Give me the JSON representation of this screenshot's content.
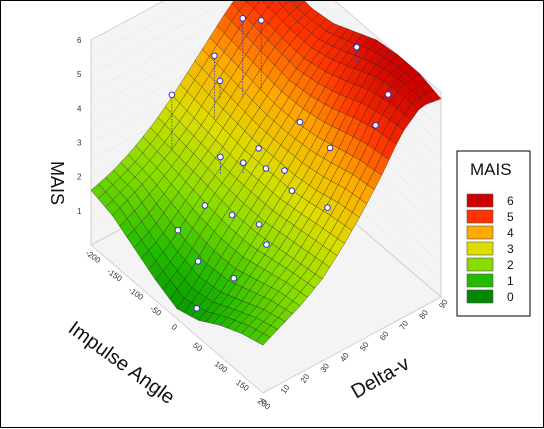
{
  "chart_data": {
    "type": "surface3d",
    "title": "",
    "x_axis": {
      "label": "Impulse Angle",
      "ticks": [
        "-200",
        "-150",
        "-100",
        "-50",
        "0",
        "50",
        "100",
        "150",
        "200"
      ],
      "range": [
        -200,
        200
      ]
    },
    "y_axis": {
      "label": "Delta-v",
      "ticks": [
        "0",
        "10",
        "20",
        "30",
        "40",
        "50",
        "60",
        "70",
        "80",
        "90"
      ],
      "range": [
        0,
        90
      ]
    },
    "z_axis": {
      "label": "MAIS",
      "ticks": [
        "1",
        "2",
        "3",
        "4",
        "5",
        "6"
      ],
      "range": [
        0,
        6
      ]
    },
    "legend": {
      "title": "MAIS",
      "placement": "right",
      "entries": [
        {
          "label": "6",
          "color": "#cc0000"
        },
        {
          "label": "5",
          "color": "#ff3300"
        },
        {
          "label": "4",
          "color": "#ffaa00"
        },
        {
          "label": "3",
          "color": "#dddd00"
        },
        {
          "label": "2",
          "color": "#88dd00"
        },
        {
          "label": "1",
          "color": "#22bb00"
        },
        {
          "label": "0",
          "color": "#008800"
        }
      ]
    },
    "surface_grid": {
      "impulse_angle": [
        -200,
        -150,
        -100,
        -50,
        0,
        50,
        100,
        150,
        200
      ],
      "delta_v": [
        0,
        10,
        20,
        30,
        40,
        50,
        60,
        70,
        80,
        90
      ],
      "mais": [
        [
          1.6,
          1.8,
          2.1,
          2.5,
          3.0,
          3.6,
          4.2,
          4.8,
          5.2,
          5.4
        ],
        [
          1.4,
          1.7,
          2.0,
          2.4,
          2.9,
          3.5,
          4.1,
          4.7,
          5.1,
          5.3
        ],
        [
          1.0,
          1.3,
          1.8,
          2.3,
          2.8,
          3.4,
          4.0,
          4.6,
          5.0,
          5.2
        ],
        [
          0.6,
          1.0,
          1.6,
          2.2,
          2.7,
          3.3,
          3.9,
          4.5,
          5.0,
          5.3
        ],
        [
          0.3,
          0.8,
          1.5,
          2.1,
          2.7,
          3.3,
          3.9,
          4.6,
          5.2,
          5.6
        ],
        [
          0.5,
          0.9,
          1.5,
          2.1,
          2.7,
          3.3,
          4.0,
          4.8,
          5.5,
          5.9
        ],
        [
          0.9,
          1.2,
          1.7,
          2.2,
          2.8,
          3.4,
          4.2,
          5.1,
          5.8,
          6.0
        ],
        [
          1.2,
          1.5,
          1.9,
          2.3,
          2.9,
          3.6,
          4.4,
          5.3,
          5.9,
          6.0
        ],
        [
          1.4,
          1.7,
          2.0,
          2.4,
          3.0,
          3.7,
          4.5,
          5.4,
          5.9,
          5.8
        ]
      ]
    },
    "observations": [
      {
        "impulse_angle": -120,
        "delta_v": 45,
        "mais": 5
      },
      {
        "impulse_angle": -150,
        "delta_v": 30,
        "mais": 4
      },
      {
        "impulse_angle": -100,
        "delta_v": 55,
        "mais": 6
      },
      {
        "impulse_angle": -80,
        "delta_v": 60,
        "mais": 6
      },
      {
        "impulse_angle": 50,
        "delta_v": 80,
        "mais": 6
      },
      {
        "impulse_angle": 100,
        "delta_v": 85,
        "mais": 5
      },
      {
        "impulse_angle": -60,
        "delta_v": 35,
        "mais": 3
      },
      {
        "impulse_angle": -30,
        "delta_v": 40,
        "mais": 3
      },
      {
        "impulse_angle": 0,
        "delta_v": 45,
        "mais": 3
      },
      {
        "impulse_angle": 20,
        "delta_v": 50,
        "mais": 3
      },
      {
        "impulse_angle": -50,
        "delta_v": 25,
        "mais": 2
      },
      {
        "impulse_angle": -10,
        "delta_v": 30,
        "mais": 2
      },
      {
        "impulse_angle": 30,
        "delta_v": 35,
        "mais": 2
      },
      {
        "impulse_angle": 60,
        "delta_v": 45,
        "mais": 3
      },
      {
        "impulse_angle": 80,
        "delta_v": 60,
        "mais": 4
      },
      {
        "impulse_angle": -90,
        "delta_v": 20,
        "mais": 1
      },
      {
        "impulse_angle": -20,
        "delta_v": 15,
        "mais": 1
      },
      {
        "impulse_angle": 40,
        "delta_v": 20,
        "mais": 1
      },
      {
        "impulse_angle": 120,
        "delta_v": 50,
        "mais": 3
      },
      {
        "impulse_angle": 140,
        "delta_v": 70,
        "mais": 5
      },
      {
        "impulse_angle": -130,
        "delta_v": 50,
        "mais": 4
      },
      {
        "impulse_angle": 10,
        "delta_v": 60,
        "mais": 4
      },
      {
        "impulse_angle": -40,
        "delta_v": 50,
        "mais": 3
      },
      {
        "impulse_angle": 70,
        "delta_v": 30,
        "mais": 2
      },
      {
        "impulse_angle": 0,
        "delta_v": 10,
        "mais": 0
      }
    ]
  }
}
